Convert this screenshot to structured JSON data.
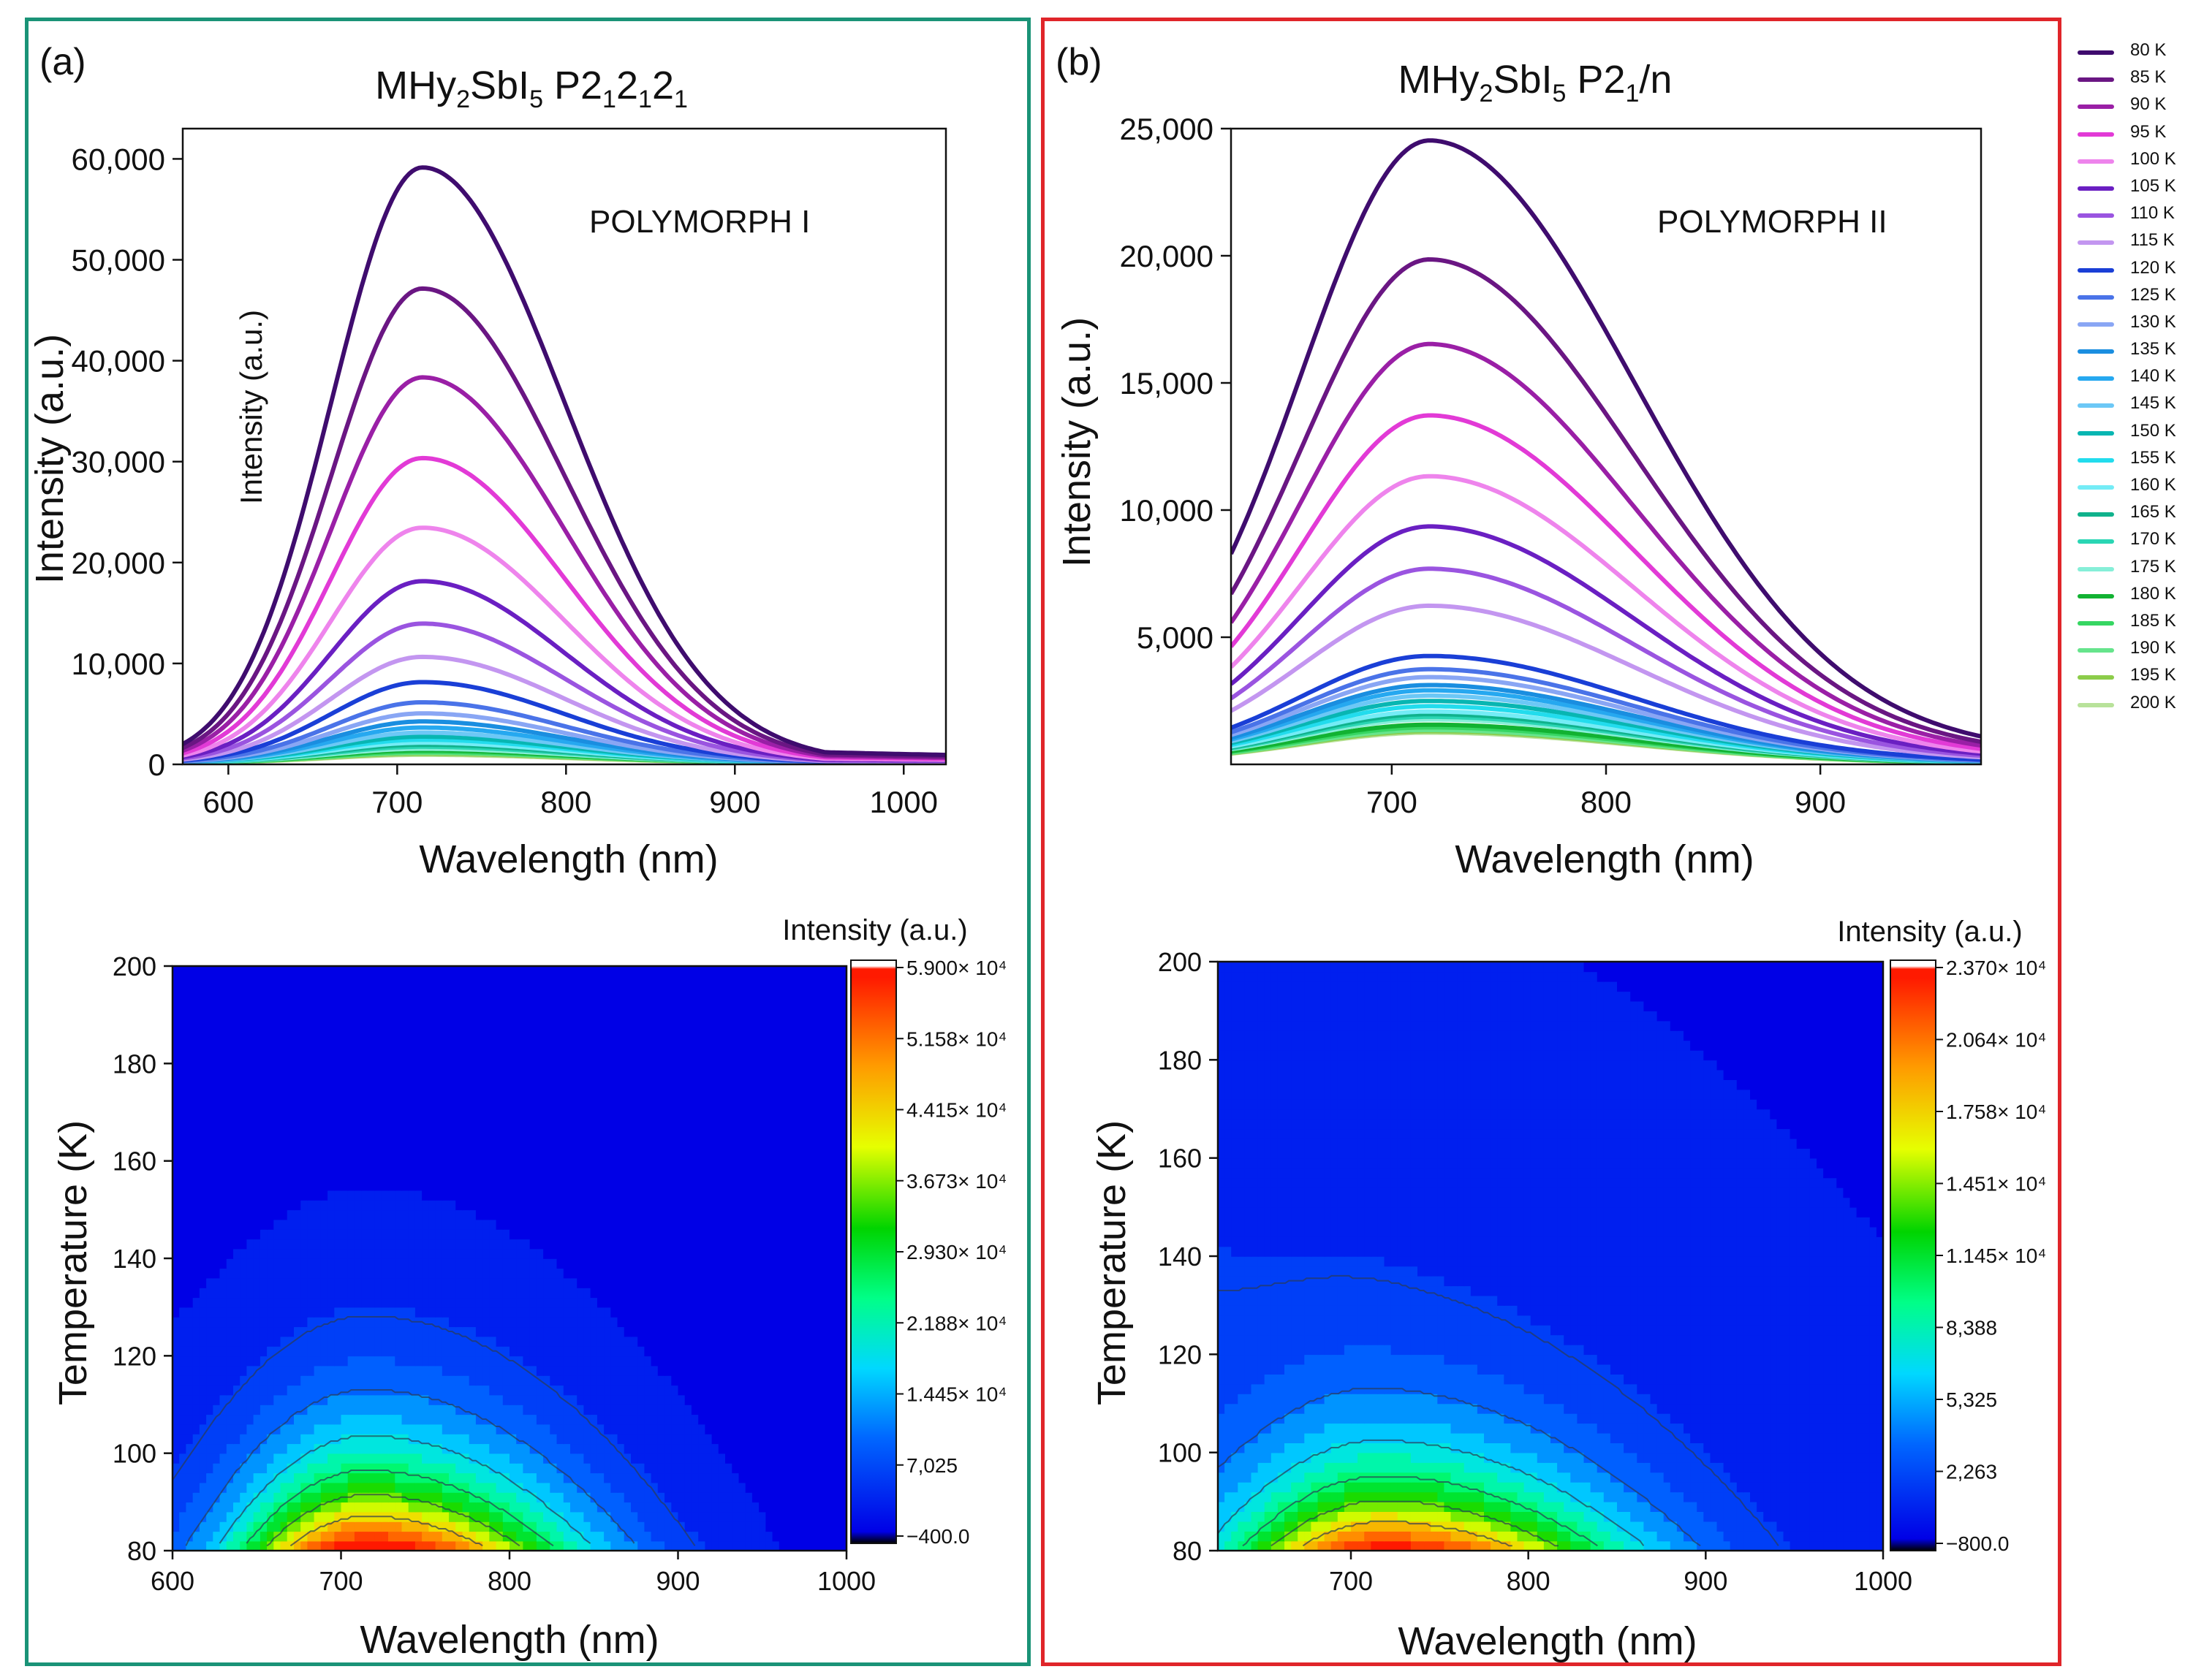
{
  "panel_a": {
    "tag": "(a)",
    "title_main": "MHy",
    "title_sub1": "2",
    "title_mid": "SbI",
    "title_sub2": "5",
    "title_sg": " P2",
    "title_sg_sub1": "1",
    "title_sg_mid1": "2",
    "title_sg_sub2": "1",
    "title_sg_mid2": "2",
    "title_sg_sub3": "1",
    "polymorph": "POLYMORPH I",
    "spectrum_xlabel": "Wavelength (nm)",
    "spectrum_ylabel": "Intensity (a.u.)",
    "inset_ylabel": "Intensity (a.u.)",
    "map_xlabel": "Wavelength (nm)",
    "map_ylabel": "Temperature (K)",
    "colorbar_title": "Intensity (a.u.)"
  },
  "panel_b": {
    "tag": "(b)",
    "title_main": "MHy",
    "title_sub1": "2",
    "title_mid": "SbI",
    "title_sub2": "5",
    "title_sg": " P2",
    "title_sg_sub1": "1",
    "title_sg_tail": "/n",
    "polymorph": "POLYMORPH II",
    "spectrum_xlabel": "Wavelength (nm)",
    "spectrum_ylabel": "Intensity (a.u.)",
    "map_xlabel": "Wavelength (nm)",
    "map_ylabel": "Temperature (K)",
    "colorbar_title": "Intensity (a.u.)"
  },
  "legend": [
    {
      "label": "80 K",
      "color": "#3f0c6e"
    },
    {
      "label": "85 K",
      "color": "#6a1683"
    },
    {
      "label": "90 K",
      "color": "#9a1fa6"
    },
    {
      "label": "95 K",
      "color": "#e23ad6"
    },
    {
      "label": "100 K",
      "color": "#ee84ec"
    },
    {
      "label": "105 K",
      "color": "#6a1fc2"
    },
    {
      "label": "110 K",
      "color": "#9a54e0"
    },
    {
      "label": "115 K",
      "color": "#c396f0"
    },
    {
      "label": "120 K",
      "color": "#1a3fd6"
    },
    {
      "label": "125 K",
      "color": "#4a73e8"
    },
    {
      "label": "130 K",
      "color": "#89a6f4"
    },
    {
      "label": "135 K",
      "color": "#1a8ee0"
    },
    {
      "label": "140 K",
      "color": "#26a8f0"
    },
    {
      "label": "145 K",
      "color": "#6cc8f6"
    },
    {
      "label": "150 K",
      "color": "#08b6b2"
    },
    {
      "label": "155 K",
      "color": "#22dced"
    },
    {
      "label": "160 K",
      "color": "#74ecf6"
    },
    {
      "label": "165 K",
      "color": "#10b28c"
    },
    {
      "label": "170 K",
      "color": "#2ad6b4"
    },
    {
      "label": "175 K",
      "color": "#86efd8"
    },
    {
      "label": "180 K",
      "color": "#12b232"
    },
    {
      "label": "185 K",
      "color": "#36d662"
    },
    {
      "label": "190 K",
      "color": "#66e48c"
    },
    {
      "label": "195 K",
      "color": "#8ccc4a"
    },
    {
      "label": "200 K",
      "color": "#b8e29a"
    }
  ],
  "chart_data": [
    {
      "id": "a_spectra",
      "type": "line",
      "title": "MHy2SbI5 P212121 — POLYMORPH I",
      "xlabel": "Wavelength (nm)",
      "ylabel": "Intensity (a.u.)",
      "xlim": [
        573,
        1025
      ],
      "ylim": [
        0,
        63000
      ],
      "xticks": [
        600,
        700,
        800,
        900,
        1000
      ],
      "yticks": [
        0,
        10000,
        20000,
        30000,
        40000,
        50000,
        60000
      ],
      "ytick_labels": [
        "0",
        "10,000",
        "20,000",
        "30,000",
        "40,000",
        "50,000",
        "60,000"
      ],
      "series_peak_nm": 715,
      "series_peaks": [
        59000,
        47000,
        38200,
        30200,
        23300,
        18000,
        13800,
        10500,
        8000,
        6000,
        4900,
        4100,
        3500,
        3000,
        2600,
        2300,
        2000,
        1800,
        1600,
        1400,
        1250,
        1100,
        1000,
        900,
        800
      ],
      "series_names": [
        "80 K",
        "85 K",
        "90 K",
        "95 K",
        "100 K",
        "105 K",
        "110 K",
        "115 K",
        "120 K",
        "125 K",
        "130 K",
        "135 K",
        "140 K",
        "145 K",
        "150 K",
        "155 K",
        "160 K",
        "165 K",
        "170 K",
        "175 K",
        "180 K",
        "185 K",
        "190 K",
        "195 K",
        "200 K"
      ]
    },
    {
      "id": "b_spectra",
      "type": "line",
      "title": "MHy2SbI5 P21/n — POLYMORPH II",
      "xlabel": "Wavelength (nm)",
      "ylabel": "Intensity (a.u.)",
      "xlim": [
        625,
        975
      ],
      "ylim": [
        0,
        25000
      ],
      "xticks": [
        700,
        800,
        900
      ],
      "yticks": [
        5000,
        10000,
        15000,
        20000,
        25000
      ],
      "ytick_labels": [
        "5,000",
        "10,000",
        "15,000",
        "20,000",
        "25,000"
      ],
      "series_peak_nm": 718,
      "series_peaks": [
        23600,
        19100,
        15900,
        13200,
        10900,
        9000,
        7400,
        6000,
        4100,
        3600,
        3300,
        3000,
        2800,
        2600,
        2400,
        2200,
        2000,
        1900,
        1800,
        1700,
        1500,
        1400,
        1300,
        1250,
        1200
      ],
      "series_names": [
        "80 K",
        "85 K",
        "90 K",
        "95 K",
        "100 K",
        "105 K",
        "110 K",
        "115 K",
        "120 K",
        "125 K",
        "130 K",
        "135 K",
        "140 K",
        "145 K",
        "150 K",
        "155 K",
        "160 K",
        "165 K",
        "170 K",
        "175 K",
        "180 K",
        "185 K",
        "190 K",
        "195 K",
        "200 K"
      ]
    },
    {
      "id": "a_map",
      "type": "heatmap",
      "xlabel": "Wavelength (nm)",
      "ylabel": "Temperature (K)",
      "xlim": [
        600,
        1000
      ],
      "ylim": [
        80,
        200
      ],
      "xticks": [
        600,
        700,
        800,
        900,
        1000
      ],
      "yticks": [
        80,
        100,
        120,
        140,
        160,
        180,
        200
      ],
      "colorbar_title": "Intensity (a.u.)",
      "colorbar_labels": [
        "5.900× 10⁴",
        "5.158× 10⁴",
        "4.415× 10⁴",
        "3.673× 10⁴",
        "2.930× 10⁴",
        "2.188× 10⁴",
        "1.445× 10⁴",
        "7,025",
        "−400.0"
      ],
      "colorbar_range": [
        -400,
        59000
      ]
    },
    {
      "id": "b_map",
      "type": "heatmap",
      "xlabel": "Wavelength (nm)",
      "ylabel": "Temperature (K)",
      "xlim": [
        625,
        1000
      ],
      "ylim": [
        80,
        200
      ],
      "xticks": [
        700,
        800,
        900,
        1000
      ],
      "yticks": [
        80,
        100,
        120,
        140,
        160,
        180,
        200
      ],
      "colorbar_title": "Intensity (a.u.)",
      "colorbar_labels": [
        "2.370× 10⁴",
        "2.064× 10⁴",
        "1.758× 10⁴",
        "1.451× 10⁴",
        "1.145× 10⁴",
        "8,388",
        "5,325",
        "2,263",
        "−800.0"
      ],
      "colorbar_range": [
        -800,
        23700
      ]
    }
  ]
}
